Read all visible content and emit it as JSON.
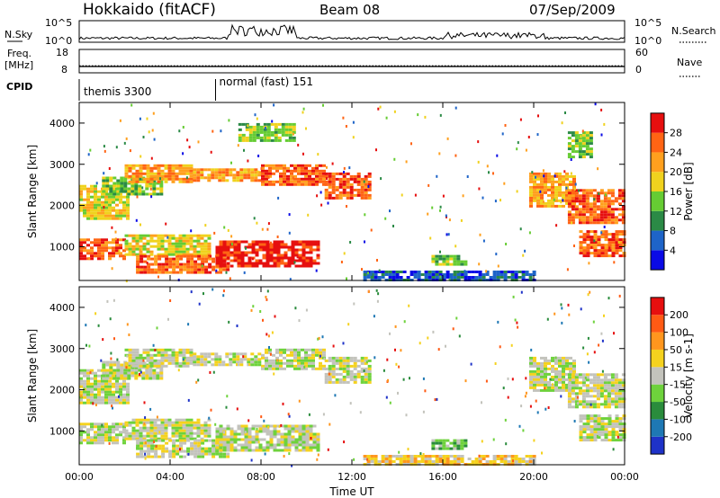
{
  "header": {
    "station": "Hokkaido (fitACF)",
    "beam": "Beam 08",
    "date": "07/Sep/2009"
  },
  "top_strip": {
    "left_label": "N.Sky",
    "right_label": "N.Search",
    "left_ticks": [
      "10^5",
      "10^0"
    ],
    "right_ticks": [
      "10^5",
      "10^0"
    ]
  },
  "freq_strip": {
    "left_label_1": "Freq.",
    "left_label_2": "[MHz]",
    "right_label": "Nave",
    "left_ticks": [
      "18",
      "8"
    ],
    "right_ticks": [
      "60",
      "0"
    ],
    "freq_value": 10.7,
    "nave_value": 18
  },
  "cpid": {
    "label": "CPID",
    "segments": [
      {
        "name": "themis 3300",
        "start_hour": 0,
        "end_hour": 6
      },
      {
        "name": "normal (fast) 151",
        "start_hour": 6,
        "end_hour": 24
      }
    ]
  },
  "chart_data": [
    {
      "type": "heatmap",
      "title": "",
      "parameter": "Power",
      "colorbar_label": "Power [dB]",
      "colorbar_ticks": [
        4,
        8,
        12,
        16,
        20,
        24,
        28
      ],
      "colorbar_range": [
        0,
        32
      ],
      "colors": [
        "#0a0ae6",
        "#1e64c8",
        "#2b8a46",
        "#66cc33",
        "#f0d21e",
        "#ffa01e",
        "#ff6414",
        "#e60f0f"
      ],
      "ylabel": "Slant Range [km]",
      "yticks": [
        1000,
        2000,
        3000,
        4000
      ],
      "ylim": [
        180,
        4500
      ],
      "xlim": [
        0,
        24
      ],
      "regions": [
        {
          "t0": 0.0,
          "t1": 2.2,
          "r0": 1700,
          "r1": 2500,
          "level": 4
        },
        {
          "t0": 1.0,
          "t1": 3.6,
          "r0": 2250,
          "r1": 2700,
          "level": 3
        },
        {
          "t0": 2.0,
          "t1": 5.0,
          "r0": 2600,
          "r1": 3000,
          "level": 5
        },
        {
          "t0": 5.0,
          "t1": 8.0,
          "r0": 2620,
          "r1": 2900,
          "level": 5
        },
        {
          "t0": 8.0,
          "t1": 10.8,
          "r0": 2500,
          "r1": 3000,
          "level": 6
        },
        {
          "t0": 10.8,
          "t1": 12.8,
          "r0": 2150,
          "r1": 2800,
          "level": 6
        },
        {
          "t0": 0.0,
          "t1": 2.0,
          "r0": 700,
          "r1": 1200,
          "level": 6
        },
        {
          "t0": 2.0,
          "t1": 5.8,
          "r0": 800,
          "r1": 1300,
          "level": 4
        },
        {
          "t0": 2.5,
          "t1": 6.5,
          "r0": 400,
          "r1": 800,
          "level": 6
        },
        {
          "t0": 6.0,
          "t1": 10.5,
          "r0": 500,
          "r1": 1150,
          "level": 7
        },
        {
          "t0": 7.0,
          "t1": 9.5,
          "r0": 3600,
          "r1": 4000,
          "level": 3
        },
        {
          "t0": 12.5,
          "t1": 20.0,
          "r0": 220,
          "r1": 420,
          "level": 1
        },
        {
          "t0": 15.5,
          "t1": 17.0,
          "r0": 600,
          "r1": 800,
          "level": 3
        },
        {
          "t0": 19.8,
          "t1": 21.8,
          "r0": 2000,
          "r1": 2800,
          "level": 5
        },
        {
          "t0": 21.5,
          "t1": 24.0,
          "r0": 1600,
          "r1": 2400,
          "level": 6
        },
        {
          "t0": 22.0,
          "t1": 24.0,
          "r0": 800,
          "r1": 1400,
          "level": 6
        },
        {
          "t0": 21.5,
          "t1": 22.5,
          "r0": 3200,
          "r1": 3800,
          "level": 3
        }
      ]
    },
    {
      "type": "heatmap",
      "title": "",
      "parameter": "Velocity",
      "colorbar_label": "Velocity [m s-1]",
      "colorbar_ticks": [
        "200",
        "100",
        "50",
        "15",
        "-15",
        "-50",
        "-100",
        "-200"
      ],
      "colors": [
        "#1e32c8",
        "#1e78b4",
        "#2a8c3c",
        "#6ed23c",
        "#c3c3bc",
        "#f5d21e",
        "#ff961e",
        "#ff5a14",
        "#e60f0f"
      ],
      "ylabel": "Slant Range [km]",
      "yticks": [
        1000,
        2000,
        3000,
        4000
      ],
      "ylim": [
        180,
        4500
      ],
      "xlabel": "Time UT",
      "xticks": [
        "00:00",
        "04:00",
        "08:00",
        "12:00",
        "16:00",
        "20:00",
        "00:00"
      ],
      "xlim": [
        0,
        24
      ],
      "regions": [
        {
          "t0": 0.0,
          "t1": 2.2,
          "r0": 1700,
          "r1": 2500,
          "level": 4
        },
        {
          "t0": 1.0,
          "t1": 3.6,
          "r0": 2250,
          "r1": 2700,
          "level": 4
        },
        {
          "t0": 2.0,
          "t1": 5.0,
          "r0": 2600,
          "r1": 3000,
          "level": 4
        },
        {
          "t0": 5.0,
          "t1": 8.0,
          "r0": 2620,
          "r1": 2900,
          "level": 4
        },
        {
          "t0": 8.0,
          "t1": 10.8,
          "r0": 2500,
          "r1": 3000,
          "level": 4
        },
        {
          "t0": 10.8,
          "t1": 12.8,
          "r0": 2150,
          "r1": 2800,
          "level": 4
        },
        {
          "t0": 0.0,
          "t1": 2.0,
          "r0": 700,
          "r1": 1200,
          "level": 4
        },
        {
          "t0": 2.0,
          "t1": 5.8,
          "r0": 800,
          "r1": 1300,
          "level": 4
        },
        {
          "t0": 2.5,
          "t1": 6.5,
          "r0": 400,
          "r1": 800,
          "level": 4
        },
        {
          "t0": 6.0,
          "t1": 10.5,
          "r0": 500,
          "r1": 1150,
          "level": 4
        },
        {
          "t0": 12.5,
          "t1": 20.0,
          "r0": 220,
          "r1": 420,
          "level": 5
        },
        {
          "t0": 15.5,
          "t1": 17.0,
          "r0": 600,
          "r1": 800,
          "level": 3
        },
        {
          "t0": 19.8,
          "t1": 21.8,
          "r0": 2000,
          "r1": 2800,
          "level": 4
        },
        {
          "t0": 21.5,
          "t1": 24.0,
          "r0": 1600,
          "r1": 2400,
          "level": 4
        },
        {
          "t0": 22.0,
          "t1": 24.0,
          "r0": 800,
          "r1": 1400,
          "level": 4
        }
      ]
    }
  ]
}
